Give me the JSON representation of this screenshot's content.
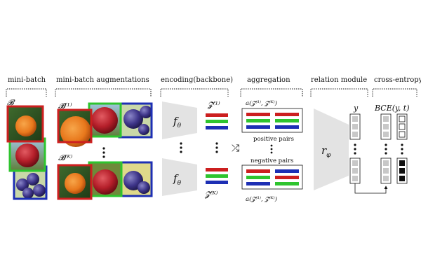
{
  "headers": {
    "minibatch": "mini-batch",
    "augmentations": "mini-batch augmentations",
    "encoding": "encoding(backbone)",
    "aggregation": "aggregation",
    "relation": "relation module",
    "crossentropy": "cross-entropy"
  },
  "symbols": {
    "batch": "𝓑",
    "batch_aug1": "𝓑⁽¹⁾",
    "batch_augK": "𝓑⁽ᴷ⁾",
    "f_theta": "f",
    "f_sub": "θ",
    "z1": "𝓩⁽¹⁾",
    "zK": "𝓩⁽ᴷ⁾",
    "r_phi": "r",
    "r_sub": "φ",
    "y": "y",
    "bce": "BCE(y, t)",
    "shuffle": "⤮"
  },
  "aggregation": {
    "top_formula": "a(𝓩⁽¹⁾, 𝓩⁽ᴷ⁾)",
    "positive_label": "positive pairs",
    "negative_label": "negative pairs",
    "bottom_formula": "a(𝓩⁽¹⁾, 𝓩̃⁽ᴷ⁾)"
  },
  "colors": {
    "red": "#cc1f1f",
    "green": "#2ec42e",
    "blue": "#1d2fb4",
    "gray_shape": "#e3e3e3",
    "gray_cell": "#c8c8c8",
    "black_cell": "#111111"
  },
  "images": {
    "orange": "orange",
    "apple": "apple",
    "plums": "plums"
  }
}
